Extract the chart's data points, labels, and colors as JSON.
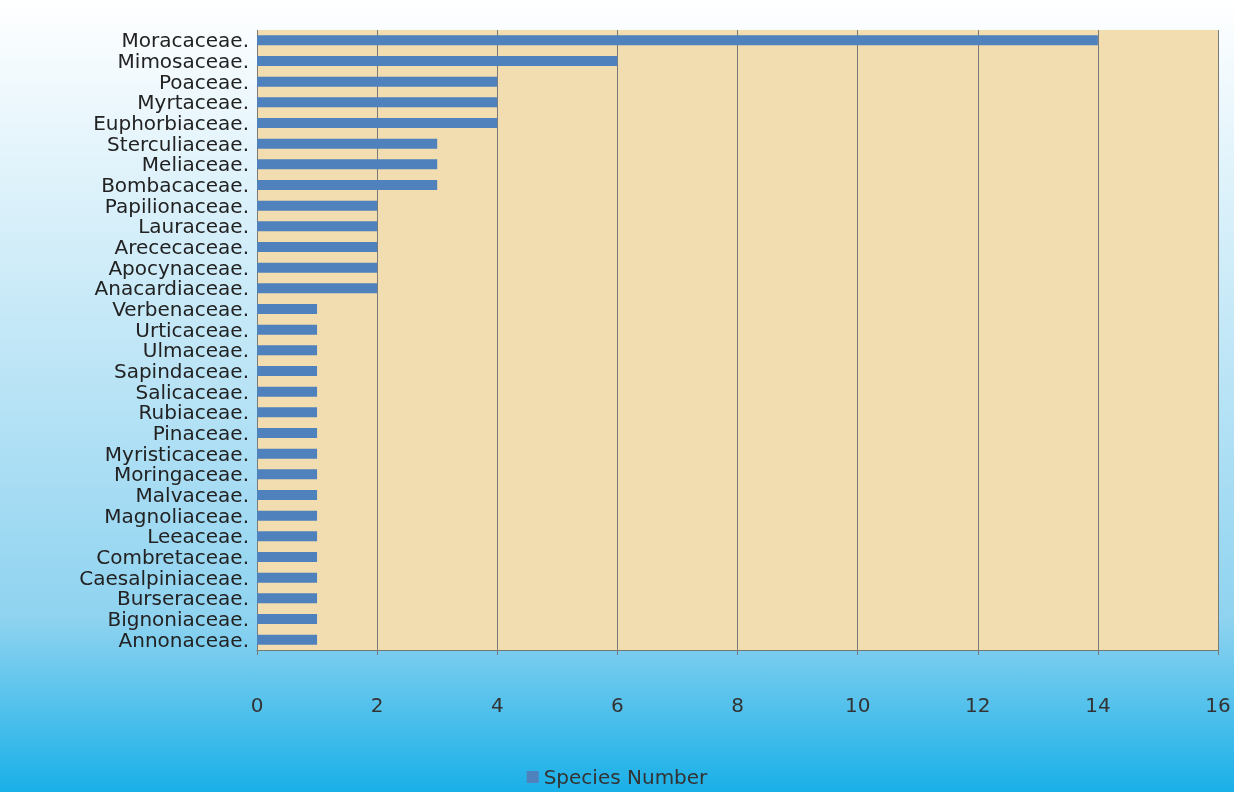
{
  "chart_data": {
    "type": "bar",
    "orientation": "horizontal",
    "categories": [
      "Moracaceae.",
      "Mimosaceae.",
      "Poaceae.",
      "Myrtaceae.",
      "Euphorbiaceae.",
      "Sterculiaceae.",
      "Meliaceae.",
      "Bombacaceae.",
      "Papilionaceae.",
      "Lauraceae.",
      "Arececaceae.",
      "Apocynaceae.",
      "Anacardiaceae.",
      "Verbenaceae.",
      "Urticaceae.",
      "Ulmaceae.",
      "Sapindaceae.",
      "Salicaceae.",
      "Rubiaceae.",
      "Pinaceae.",
      "Myristicaceae.",
      "Moringaceae.",
      "Malvaceae.",
      "Magnoliaceae.",
      "Leeaceae.",
      "Combretaceae.",
      "Caesalpiniaceae.",
      "Burseraceae.",
      "Bignoniaceae.",
      "Annonaceae."
    ],
    "series": [
      {
        "name": "Species Number",
        "color": "#4f81bd",
        "values": [
          14,
          6,
          4,
          4,
          4,
          3,
          3,
          3,
          2,
          2,
          2,
          2,
          2,
          1,
          1,
          1,
          1,
          1,
          1,
          1,
          1,
          1,
          1,
          1,
          1,
          1,
          1,
          1,
          1,
          1
        ]
      }
    ],
    "xlim": [
      0,
      16
    ],
    "xticks": [
      0,
      2,
      4,
      6,
      8,
      10,
      12,
      14,
      16
    ],
    "grid": "x",
    "legend": "bottom"
  }
}
